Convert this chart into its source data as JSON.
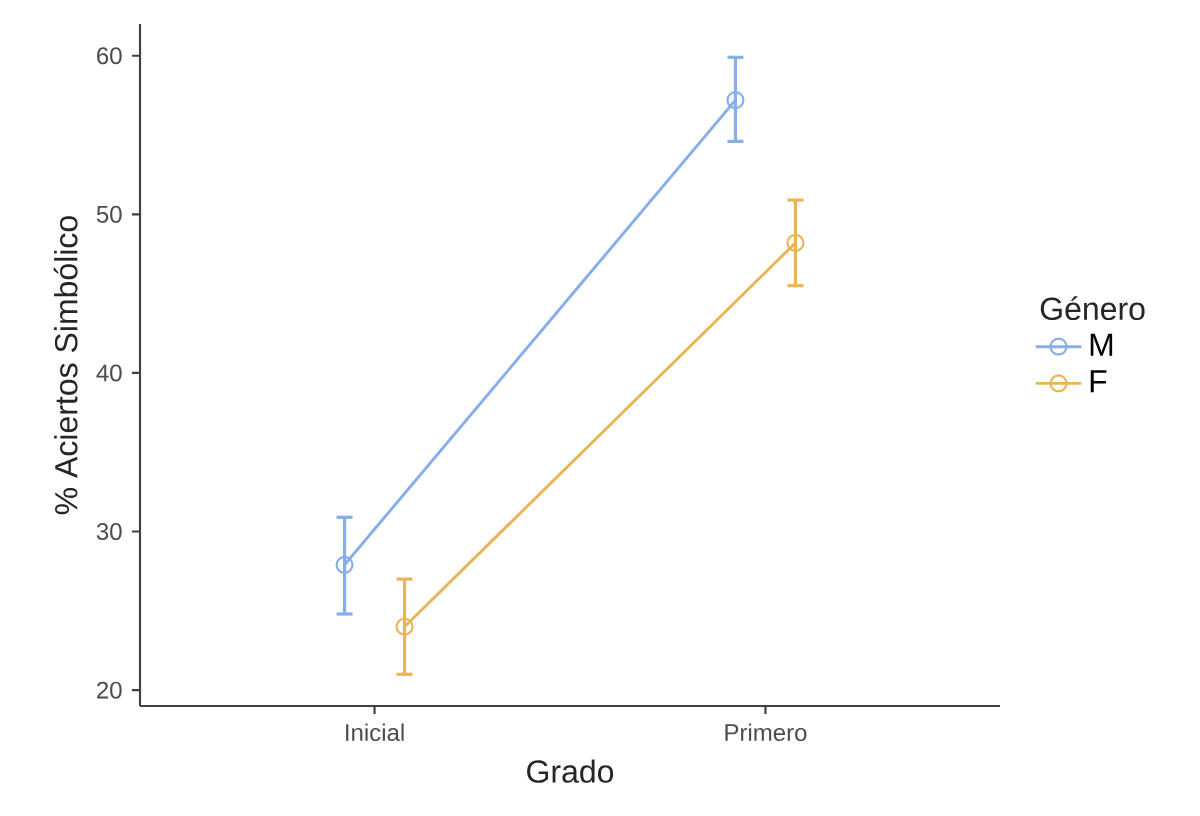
{
  "chart_data": {
    "type": "line",
    "xlabel": "Grado",
    "ylabel": "% Aciertos Simbólico",
    "legend_title": "Género",
    "categories": [
      "Inicial",
      "Primero"
    ],
    "series": [
      {
        "name": "M",
        "color": "#86aee8",
        "values": [
          27.9,
          57.2
        ],
        "errors": [
          [
            24.8,
            30.9
          ],
          [
            54.6,
            59.9
          ]
        ]
      },
      {
        "name": "F",
        "color": "#e8b556",
        "values": [
          24.0,
          48.2
        ],
        "errors": [
          [
            21.0,
            27.0
          ],
          [
            45.5,
            50.9
          ]
        ]
      }
    ],
    "ylim": [
      19,
      62
    ],
    "yticks": [
      20,
      30,
      40,
      50,
      60
    ],
    "legend": "right",
    "marker": "circle",
    "grid": false
  }
}
